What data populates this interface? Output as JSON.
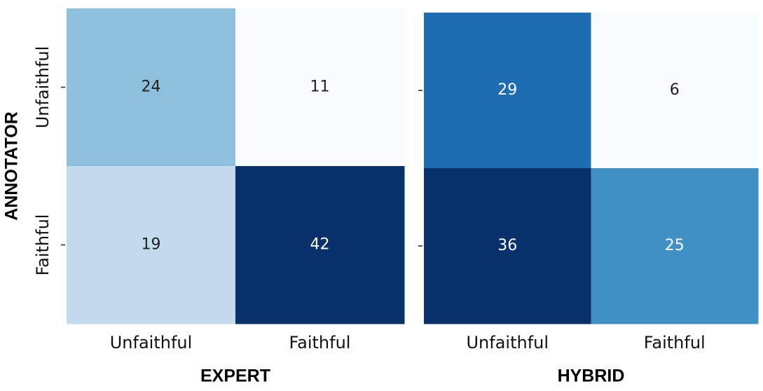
{
  "chart_data": [
    {
      "type": "heatmap",
      "colormap": "Blues",
      "x_label": "EXPERT",
      "y_label": "ANNOTATOR",
      "x_categories": [
        "Unfaithful",
        "Faithful"
      ],
      "y_categories": [
        "Unfaithful",
        "Faithful"
      ],
      "values": [
        [
          24,
          11
        ],
        [
          19,
          42
        ]
      ]
    },
    {
      "type": "heatmap",
      "colormap": "Blues",
      "x_label": "HYBRID",
      "x_categories": [
        "Unfaithful",
        "Faithful"
      ],
      "y_categories": [
        null,
        null
      ],
      "values": [
        [
          29,
          6
        ],
        [
          36,
          25
        ]
      ]
    }
  ]
}
